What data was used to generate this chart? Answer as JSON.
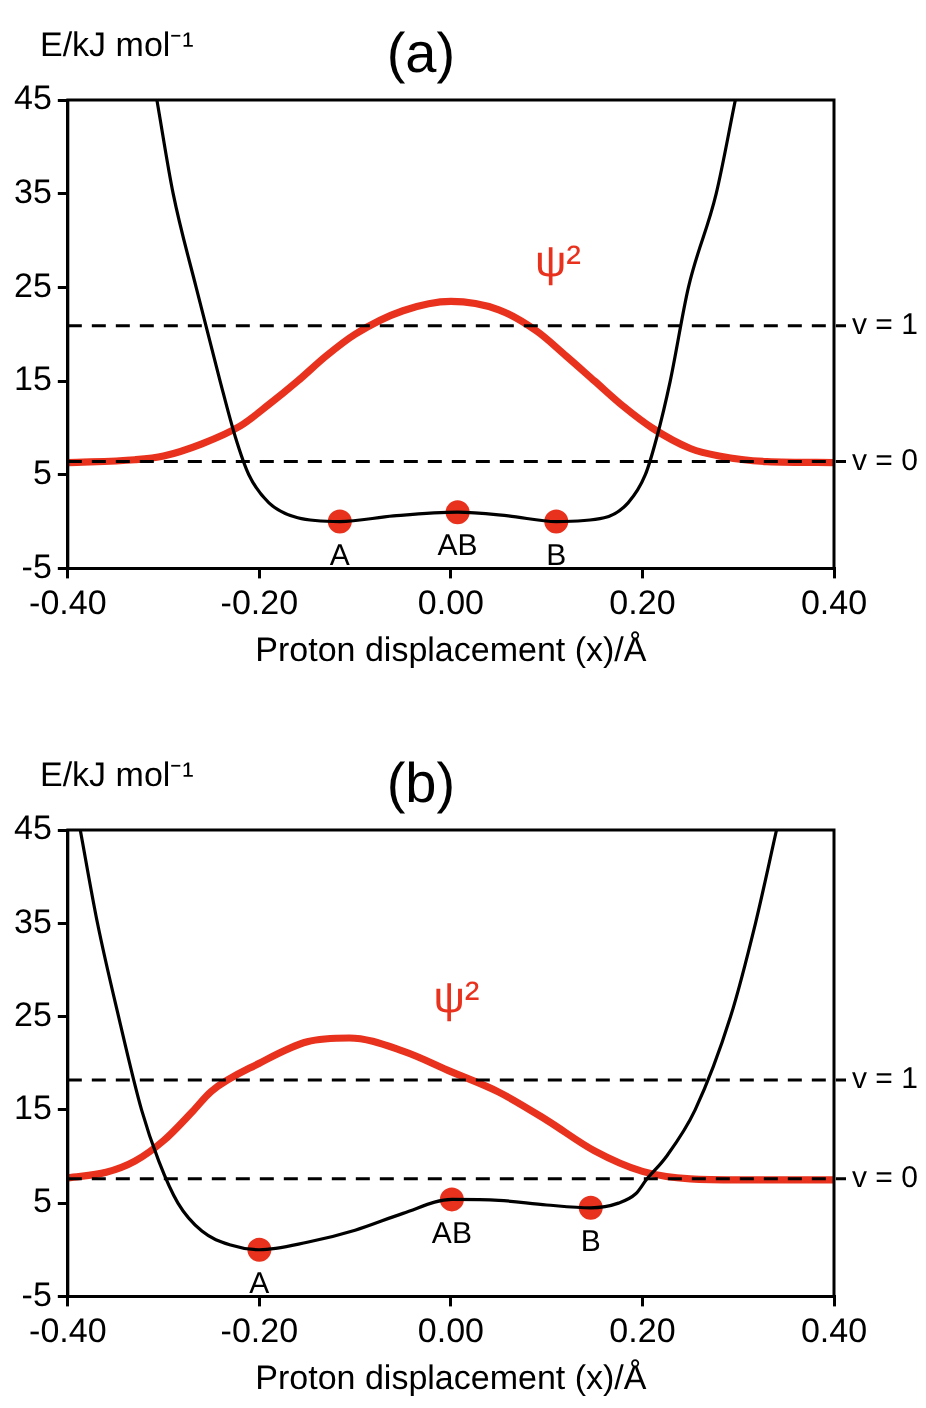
{
  "chart_data": [
    {
      "type": "line",
      "title": "(a)",
      "xlabel": "Proton displacement (x)/Å",
      "ylabel": "E/kJ mol⁻¹",
      "xlim": [
        -0.4,
        0.4
      ],
      "xticks": [
        {
          "value": -0.4,
          "label": "-0.40"
        },
        {
          "value": -0.2,
          "label": "-0.20"
        },
        {
          "value": 0,
          "label": "0.00"
        },
        {
          "value": 0.2,
          "label": "0.20"
        },
        {
          "value": 0.4,
          "label": "0.40"
        }
      ],
      "ylim": [
        -5,
        45
      ],
      "yticks": [
        -5,
        5,
        15,
        25,
        35,
        45
      ],
      "grid": false,
      "legend": false,
      "series": [
        {
          "type": "line",
          "color": "#000000",
          "x": [
            -0.307,
            -0.29,
            -0.266,
            -0.241,
            -0.225,
            -0.211,
            -0.19,
            -0.16,
            -0.116,
            -0.06,
            0.007,
            0.06,
            0.11,
            0.16,
            0.185,
            0.203,
            0.215,
            0.229,
            0.248,
            0.277,
            0.297
          ],
          "values": [
            45,
            35,
            25,
            15,
            9,
            5,
            2,
            0.4,
            0,
            0.6,
            1,
            0.6,
            0,
            0.4,
            2,
            5,
            9,
            15,
            25,
            35,
            45
          ]
        },
        {
          "type": "line",
          "name": "ψ²",
          "color": "#e8321e",
          "x": [
            -0.4,
            -0.33,
            -0.3,
            -0.26,
            -0.22,
            -0.19,
            -0.16,
            -0.13,
            -0.1,
            -0.05,
            0,
            0.05,
            0.09,
            0.12,
            0.15,
            0.18,
            0.21,
            0.25,
            0.28,
            0.33,
            0.4
          ],
          "values": [
            6.3,
            6.6,
            7,
            8.3,
            10.2,
            12.5,
            15,
            17.7,
            20,
            22.5,
            23.5,
            22.6,
            20.3,
            17.7,
            15,
            12.3,
            10,
            7.8,
            7,
            6.4,
            6.3
          ]
        },
        {
          "type": "scatter",
          "color": "#e8321e",
          "marker": "circle",
          "x": [
            -0.116,
            0.007,
            0.11
          ],
          "values": [
            0,
            1,
            0
          ]
        }
      ],
      "ref_lines": [
        {
          "axis": "y",
          "value": 20.9,
          "line_style": "dashed",
          "color": "#000000"
        },
        {
          "axis": "y",
          "value": 6.4,
          "line_style": "dashed",
          "color": "#000000"
        }
      ],
      "annotations": [
        {
          "text": "v = 1",
          "x": 0.4,
          "y": 20.9
        },
        {
          "text": "v = 0",
          "x": 0.4,
          "y": 6.4
        },
        {
          "text": "A",
          "x": -0.116,
          "y": 0
        },
        {
          "text": "AB",
          "x": 0.007,
          "y": 1
        },
        {
          "text": "B",
          "x": 0.11,
          "y": 0
        }
      ]
    },
    {
      "type": "line",
      "title": "(b)",
      "xlabel": "Proton displacement (x)/Å",
      "ylabel": "E/kJ mol⁻¹",
      "xlim": [
        -0.4,
        0.4
      ],
      "xticks": [
        {
          "value": -0.4,
          "label": "-0.40"
        },
        {
          "value": -0.2,
          "label": "-0.20"
        },
        {
          "value": 0,
          "label": "0.00"
        },
        {
          "value": 0.2,
          "label": "0.20"
        },
        {
          "value": 0.4,
          "label": "0.40"
        }
      ],
      "ylim": [
        -5,
        45
      ],
      "yticks": [
        -5,
        5,
        15,
        25,
        35,
        45
      ],
      "grid": false,
      "legend": false,
      "series": [
        {
          "type": "line",
          "color": "#000000",
          "x": [
            -0.387,
            -0.369,
            -0.347,
            -0.323,
            -0.305,
            -0.285,
            -0.26,
            -0.23,
            -0.2,
            -0.15,
            -0.1,
            -0.05,
            0.001,
            0.05,
            0.1,
            0.146,
            0.175,
            0.193,
            0.204,
            0.225,
            0.255,
            0.292,
            0.318,
            0.34
          ],
          "values": [
            45,
            35,
            25,
            15,
            9.5,
            5,
            2,
            0.5,
            0,
            0.8,
            2.1,
            3.9,
            5.4,
            5.3,
            4.8,
            4.5,
            5,
            6,
            7.5,
            10,
            15,
            25,
            35,
            45
          ]
        },
        {
          "type": "line",
          "name": "ψ²",
          "color": "#e8321e",
          "x": [
            -0.4,
            -0.36,
            -0.33,
            -0.3,
            -0.27,
            -0.25,
            -0.2,
            -0.15,
            -0.106,
            -0.05,
            0,
            0.05,
            0.1,
            0.15,
            0.2,
            0.25,
            0.3,
            0.35,
            0.4
          ],
          "values": [
            7.7,
            8.3,
            9.5,
            11.7,
            14.8,
            17,
            20,
            22.3,
            22.7,
            21.3,
            19.1,
            16.9,
            13.9,
            10.6,
            8.4,
            7.6,
            7.5,
            7.5,
            7.5
          ]
        },
        {
          "type": "scatter",
          "color": "#e8321e",
          "marker": "circle",
          "x": [
            -0.2,
            0.001,
            0.146
          ],
          "values": [
            0,
            5.4,
            4.5
          ]
        }
      ],
      "ref_lines": [
        {
          "axis": "y",
          "value": 18.2,
          "line_style": "dashed",
          "color": "#000000"
        },
        {
          "axis": "y",
          "value": 7.6,
          "line_style": "dashed",
          "color": "#000000"
        }
      ],
      "annotations": [
        {
          "text": "v = 1",
          "x": 0.4,
          "y": 18.2
        },
        {
          "text": "v = 0",
          "x": 0.4,
          "y": 7.6
        },
        {
          "text": "A",
          "x": -0.2,
          "y": 0
        },
        {
          "text": "AB",
          "x": 0.001,
          "y": 5.4
        },
        {
          "text": "B",
          "x": 0.146,
          "y": 4.5
        }
      ]
    }
  ]
}
